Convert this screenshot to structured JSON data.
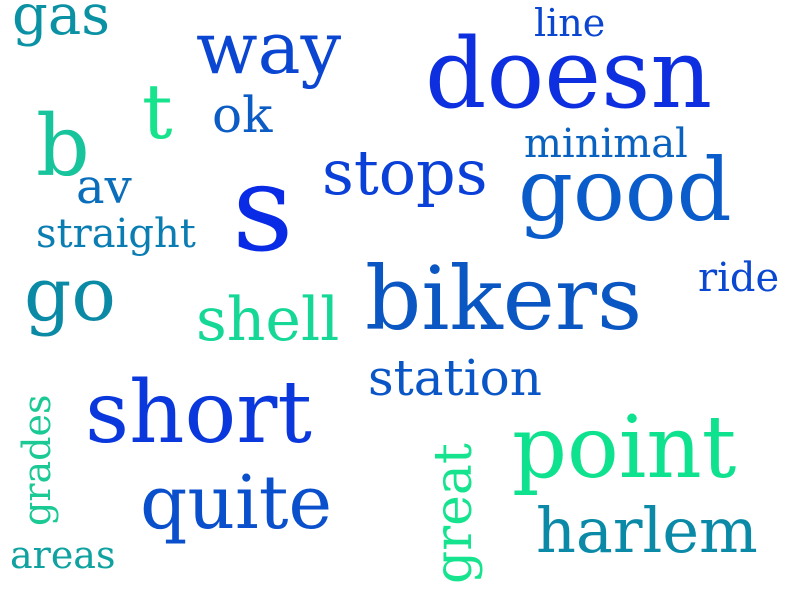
{
  "words": {
    "s": "s",
    "doesn": "doesn",
    "bikers": "bikers",
    "good": "good",
    "short": "short",
    "point": "point",
    "quite": "quite",
    "way": "way",
    "harlem": "harlem",
    "stops": "stops",
    "shell": "shell",
    "b": "b",
    "go": "go",
    "t": "t",
    "gas": "gas",
    "station": "station",
    "ok": "ok",
    "av": "av",
    "straight": "straight",
    "minimal": "minimal",
    "line": "line",
    "ride": "ride",
    "areas": "areas",
    "grades": "grades",
    "great": "great"
  },
  "colors": {
    "s": "#0a2be6",
    "doesn": "#0d2fe0",
    "bikers": "#0a56c2",
    "good": "#0a5ccb",
    "short": "#0b38dc",
    "point": "#0fe28e",
    "quite": "#0a4fcb",
    "way": "#0b46d2",
    "harlem": "#0b8aa8",
    "stops": "#0a40d8",
    "shell": "#16d896",
    "b": "#17c49b",
    "go": "#0b8aa6",
    "t": "#16e38c",
    "gas": "#0a92a4",
    "station": "#0a56c6",
    "ok": "#0b5cc4",
    "av": "#0a6ebb",
    "straight": "#0a7db2",
    "minimal": "#0a62c0",
    "line": "#0a46d0",
    "ride": "#0a48d2",
    "areas": "#0fa2a0",
    "grades": "#1bc995",
    "great": "#15e38e"
  }
}
